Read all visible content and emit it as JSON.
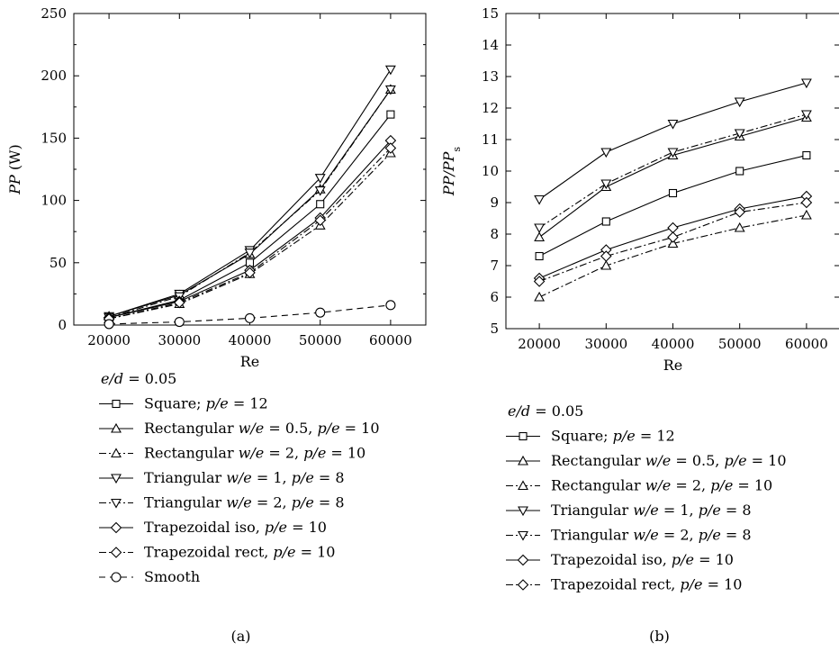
{
  "chart_data": [
    {
      "panel_label": "(a)",
      "type": "line",
      "x": [
        20000,
        30000,
        40000,
        50000,
        60000
      ],
      "xlabel": "Re",
      "ylabel_italic": "PP",
      "ylabel_unit": "(W)",
      "xlim": [
        15000,
        65000
      ],
      "ylim": [
        0,
        250
      ],
      "yticks": [
        0,
        50,
        100,
        150,
        200,
        250
      ],
      "grid": false,
      "legend": {
        "placement": "below",
        "header_italic_a": "e",
        "header_slash": "/",
        "header_italic_b": "d",
        "header_value": " = 0.05"
      },
      "series": [
        {
          "name": "Square; p/e = 12",
          "lp": [
            {
              "t": "Square; ",
              "i": false
            },
            {
              "t": "p/e",
              "i": true
            },
            {
              "t": " = 12",
              "i": false
            }
          ],
          "marker": "square",
          "dash": "solid",
          "values": [
            6,
            20,
            50,
            97,
            169
          ]
        },
        {
          "name": "Rectangular w/e = 0.5, p/e = 10",
          "lp": [
            {
              "t": "Rectangular ",
              "i": false
            },
            {
              "t": "w/e",
              "i": true
            },
            {
              "t": " = 0.5, ",
              "i": false
            },
            {
              "t": "p/e",
              "i": true
            },
            {
              "t": " = 10",
              "i": false
            }
          ],
          "marker": "triangle-up",
          "dash": "solid",
          "values": [
            7,
            24,
            57,
            109,
            189
          ]
        },
        {
          "name": "Rectangular w/e = 2, p/e = 10",
          "lp": [
            {
              "t": "Rectangular ",
              "i": false
            },
            {
              "t": "w/e",
              "i": true
            },
            {
              "t": " = 2, ",
              "i": false
            },
            {
              "t": "p/e",
              "i": true
            },
            {
              "t": " = 10",
              "i": false
            }
          ],
          "marker": "triangle-up",
          "dash": "dashdot",
          "values": [
            5,
            17,
            41,
            80,
            138
          ]
        },
        {
          "name": "Triangular w/e = 1, p/e = 8",
          "lp": [
            {
              "t": "Triangular ",
              "i": false
            },
            {
              "t": "w/e",
              "i": true
            },
            {
              "t": " = 1, ",
              "i": false
            },
            {
              "t": "p/e",
              "i": true
            },
            {
              "t": " = 8",
              "i": false
            }
          ],
          "marker": "triangle-down",
          "dash": "solid",
          "values": [
            7,
            25,
            60,
            118,
            205
          ]
        },
        {
          "name": "Triangular w/e = 2, p/e = 8",
          "lp": [
            {
              "t": "Triangular ",
              "i": false
            },
            {
              "t": "w/e",
              "i": true
            },
            {
              "t": " = 2, ",
              "i": false
            },
            {
              "t": "p/e",
              "i": true
            },
            {
              "t": " = 8",
              "i": false
            }
          ],
          "marker": "triangle-down",
          "dash": "dashdot",
          "values": [
            6,
            23,
            58,
            108,
            189
          ]
        },
        {
          "name": "Trapezoidal iso, p/e = 10",
          "lp": [
            {
              "t": "Trapezoidal iso, ",
              "i": false
            },
            {
              "t": "p/e",
              "i": true
            },
            {
              "t": " = 10",
              "i": false
            }
          ],
          "marker": "diamond",
          "dash": "solid",
          "values": [
            6,
            19,
            44,
            86,
            148
          ]
        },
        {
          "name": "Trapezoidal rect, p/e = 10",
          "lp": [
            {
              "t": "Trapezoidal rect, ",
              "i": false
            },
            {
              "t": "p/e",
              "i": true
            },
            {
              "t": " = 10",
              "i": false
            }
          ],
          "marker": "diamond",
          "dash": "dashdot",
          "values": [
            5,
            18,
            42,
            84,
            142
          ]
        },
        {
          "name": "Smooth",
          "lp": [
            {
              "t": "Smooth",
              "i": false
            }
          ],
          "marker": "circle",
          "dash": "dashed",
          "values": [
            0.8,
            2.5,
            5.5,
            10,
            16
          ]
        }
      ]
    },
    {
      "panel_label": "(b)",
      "type": "line",
      "x": [
        20000,
        30000,
        40000,
        50000,
        60000
      ],
      "xlabel": "Re",
      "ylabel_italic": "PP",
      "ylabel_slash": "/",
      "ylabel_italic2": "PP",
      "ylabel_sub": "s",
      "xlim": [
        15000,
        65000
      ],
      "ylim": [
        5,
        15
      ],
      "yticks": [
        5,
        6,
        7,
        8,
        9,
        10,
        11,
        12,
        13,
        14,
        15
      ],
      "grid": false,
      "legend": {
        "placement": "below",
        "header_italic_a": "e",
        "header_slash": "/",
        "header_italic_b": "d",
        "header_value": " = 0.05"
      },
      "series": [
        {
          "name": "Square; p/e = 12",
          "lp": [
            {
              "t": "Square; ",
              "i": false
            },
            {
              "t": "p/e",
              "i": true
            },
            {
              "t": " = 12",
              "i": false
            }
          ],
          "marker": "square",
          "dash": "solid",
          "values": [
            7.3,
            8.4,
            9.3,
            10.0,
            10.5
          ]
        },
        {
          "name": "Rectangular w/e = 0.5, p/e = 10",
          "lp": [
            {
              "t": "Rectangular ",
              "i": false
            },
            {
              "t": "w/e",
              "i": true
            },
            {
              "t": " = 0.5, ",
              "i": false
            },
            {
              "t": "p/e",
              "i": true
            },
            {
              "t": " = 10",
              "i": false
            }
          ],
          "marker": "triangle-up",
          "dash": "solid",
          "values": [
            7.9,
            9.5,
            10.5,
            11.1,
            11.7
          ]
        },
        {
          "name": "Rectangular w/e = 2, p/e = 10",
          "lp": [
            {
              "t": "Rectangular ",
              "i": false
            },
            {
              "t": "w/e",
              "i": true
            },
            {
              "t": " = 2, ",
              "i": false
            },
            {
              "t": "p/e",
              "i": true
            },
            {
              "t": " = 10",
              "i": false
            }
          ],
          "marker": "triangle-up",
          "dash": "dashdot",
          "values": [
            6.0,
            7.0,
            7.7,
            8.2,
            8.6
          ]
        },
        {
          "name": "Triangular w/e = 1, p/e = 8",
          "lp": [
            {
              "t": "Triangular ",
              "i": false
            },
            {
              "t": "w/e",
              "i": true
            },
            {
              "t": " = 1, ",
              "i": false
            },
            {
              "t": "p/e",
              "i": true
            },
            {
              "t": " = 8",
              "i": false
            }
          ],
          "marker": "triangle-down",
          "dash": "solid",
          "values": [
            9.1,
            10.6,
            11.5,
            12.2,
            12.8
          ]
        },
        {
          "name": "Triangular w/e = 2, p/e = 8",
          "lp": [
            {
              "t": "Triangular ",
              "i": false
            },
            {
              "t": "w/e",
              "i": true
            },
            {
              "t": " = 2, ",
              "i": false
            },
            {
              "t": "p/e",
              "i": true
            },
            {
              "t": " = 8",
              "i": false
            }
          ],
          "marker": "triangle-down",
          "dash": "dashdot",
          "values": [
            8.2,
            9.6,
            10.6,
            11.2,
            11.8
          ]
        },
        {
          "name": "Trapezoidal iso, p/e = 10",
          "lp": [
            {
              "t": "Trapezoidal iso, ",
              "i": false
            },
            {
              "t": "p/e",
              "i": true
            },
            {
              "t": " = 10",
              "i": false
            }
          ],
          "marker": "diamond",
          "dash": "solid",
          "values": [
            6.6,
            7.5,
            8.2,
            8.8,
            9.2
          ]
        },
        {
          "name": "Trapezoidal rect, p/e = 10",
          "lp": [
            {
              "t": "Trapezoidal rect, ",
              "i": false
            },
            {
              "t": "p/e",
              "i": true
            },
            {
              "t": " = 10",
              "i": false
            }
          ],
          "marker": "diamond",
          "dash": "dashdot",
          "values": [
            6.5,
            7.3,
            7.9,
            8.7,
            9.0
          ]
        }
      ]
    }
  ]
}
